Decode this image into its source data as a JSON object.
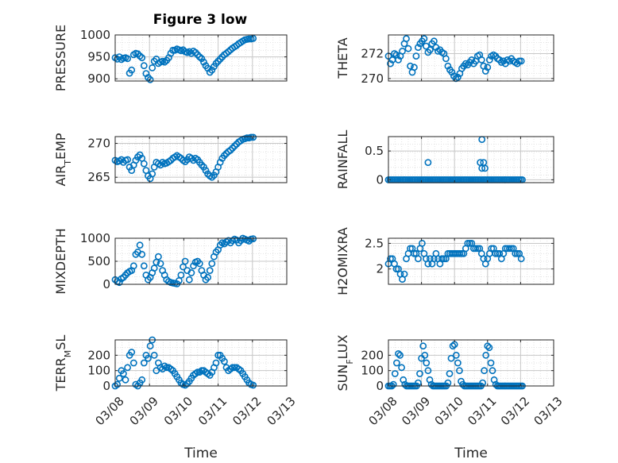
{
  "title": "Figure 3 low",
  "colors": {
    "marker": "#0072BD",
    "axis": "#262626",
    "grid": "#c8c8c8"
  },
  "chart_data": [
    {
      "type": "scatter",
      "ylabel": "PRESSURE",
      "ylim": [
        895,
        1000
      ],
      "yticks": [
        900,
        950,
        1000
      ],
      "ytick_labels": [
        "900",
        "950",
        "1000"
      ],
      "xlim": [
        0,
        5
      ],
      "grid": true,
      "marker": "circle",
      "x": [
        0.0,
        0.06,
        0.12,
        0.18,
        0.24,
        0.3,
        0.36,
        0.42,
        0.48,
        0.54,
        0.6,
        0.66,
        0.72,
        0.78,
        0.84,
        0.9,
        0.96,
        1.02,
        1.08,
        1.14,
        1.2,
        1.26,
        1.32,
        1.38,
        1.44,
        1.5,
        1.56,
        1.62,
        1.68,
        1.74,
        1.8,
        1.86,
        1.92,
        1.98,
        2.04,
        2.1,
        2.16,
        2.22,
        2.28,
        2.34,
        2.4,
        2.46,
        2.52,
        2.58,
        2.64,
        2.7,
        2.76,
        2.82,
        2.88,
        2.94,
        3.0,
        3.06,
        3.12,
        3.18,
        3.24,
        3.3,
        3.36,
        3.42,
        3.48,
        3.54,
        3.6,
        3.66,
        3.72,
        3.78,
        3.84,
        3.9,
        3.96,
        4.02
      ],
      "y": [
        948,
        945,
        950,
        944,
        947,
        948,
        946,
        913,
        920,
        955,
        958,
        957,
        952,
        948,
        930,
        912,
        903,
        898,
        925,
        940,
        945,
        935,
        938,
        940,
        938,
        942,
        948,
        958,
        965,
        965,
        968,
        966,
        964,
        966,
        962,
        960,
        962,
        958,
        963,
        960,
        955,
        950,
        946,
        938,
        930,
        924,
        915,
        920,
        928,
        935,
        940,
        945,
        950,
        955,
        958,
        962,
        966,
        970,
        973,
        976,
        980,
        983,
        986,
        989,
        990,
        991,
        991,
        992
      ]
    },
    {
      "type": "scatter",
      "ylabel": "THETA",
      "ylim": [
        269.8,
        273.5
      ],
      "yticks": [
        270,
        272
      ],
      "ytick_labels": [
        "270",
        "272"
      ],
      "xlim": [
        0,
        5
      ],
      "grid": true,
      "marker": "circle",
      "x": [
        0.0,
        0.06,
        0.12,
        0.18,
        0.24,
        0.3,
        0.36,
        0.42,
        0.48,
        0.54,
        0.6,
        0.66,
        0.72,
        0.78,
        0.84,
        0.9,
        0.96,
        1.02,
        1.08,
        1.14,
        1.2,
        1.26,
        1.32,
        1.38,
        1.44,
        1.5,
        1.56,
        1.62,
        1.68,
        1.74,
        1.8,
        1.86,
        1.92,
        1.98,
        2.04,
        2.1,
        2.16,
        2.22,
        2.28,
        2.34,
        2.4,
        2.46,
        2.52,
        2.58,
        2.64,
        2.7,
        2.76,
        2.82,
        2.88,
        2.94,
        3.0,
        3.06,
        3.12,
        3.18,
        3.24,
        3.3,
        3.36,
        3.42,
        3.48,
        3.54,
        3.6,
        3.66,
        3.72,
        3.78,
        3.84,
        3.9,
        3.96,
        4.02
      ],
      "y": [
        271.8,
        271.2,
        271.5,
        272.0,
        271.9,
        271.5,
        271.8,
        272.2,
        272.8,
        273.2,
        272.4,
        271.0,
        270.5,
        270.9,
        271.8,
        272.5,
        272.8,
        273.0,
        273.2,
        272.6,
        272.1,
        272.3,
        272.8,
        273.0,
        272.5,
        272.2,
        272.3,
        272.1,
        272.0,
        271.6,
        271.0,
        270.7,
        270.5,
        270.2,
        270.0,
        270.1,
        270.4,
        270.8,
        271.0,
        271.2,
        271.1,
        271.3,
        271.5,
        271.2,
        271.4,
        271.8,
        271.9,
        271.5,
        271.0,
        270.6,
        270.9,
        271.5,
        271.8,
        271.9,
        271.8,
        271.6,
        271.5,
        271.3,
        271.4,
        271.2,
        271.5,
        271.4,
        271.6,
        271.4,
        271.3,
        271.2,
        271.4,
        271.4
      ]
    },
    {
      "type": "scatter",
      "ylabel": "AIR_TEMP",
      "ylim": [
        264.2,
        271
      ],
      "yticks": [
        265,
        270
      ],
      "ytick_labels": [
        "265",
        "270"
      ],
      "xlim": [
        0,
        5
      ],
      "grid": true,
      "marker": "circle",
      "x": [
        0.0,
        0.06,
        0.12,
        0.18,
        0.24,
        0.3,
        0.36,
        0.42,
        0.48,
        0.54,
        0.6,
        0.66,
        0.72,
        0.78,
        0.84,
        0.9,
        0.96,
        1.02,
        1.08,
        1.14,
        1.2,
        1.26,
        1.32,
        1.38,
        1.44,
        1.5,
        1.56,
        1.62,
        1.68,
        1.74,
        1.8,
        1.86,
        1.92,
        1.98,
        2.04,
        2.1,
        2.16,
        2.22,
        2.28,
        2.34,
        2.4,
        2.46,
        2.52,
        2.58,
        2.64,
        2.7,
        2.76,
        2.82,
        2.88,
        2.94,
        3.0,
        3.06,
        3.12,
        3.18,
        3.24,
        3.3,
        3.36,
        3.42,
        3.48,
        3.54,
        3.6,
        3.66,
        3.72,
        3.78,
        3.84,
        3.9,
        3.96,
        4.02
      ],
      "y": [
        267.5,
        267.3,
        267.4,
        267.6,
        267.2,
        267.5,
        267.6,
        266.5,
        266.0,
        266.8,
        267.5,
        268.0,
        268.3,
        267.8,
        267.0,
        266.0,
        265.2,
        264.8,
        265.5,
        266.5,
        267.2,
        267.0,
        266.8,
        267.2,
        267.0,
        267.1,
        267.3,
        267.5,
        267.8,
        268.0,
        268.2,
        268.0,
        267.8,
        267.5,
        267.3,
        267.6,
        268.0,
        267.8,
        267.5,
        267.8,
        267.6,
        267.2,
        266.8,
        266.5,
        266.0,
        265.5,
        265.2,
        265.0,
        265.3,
        265.8,
        266.5,
        267.2,
        267.8,
        268.2,
        268.5,
        268.8,
        269.0,
        269.3,
        269.6,
        269.9,
        270.2,
        270.4,
        270.6,
        270.7,
        270.8,
        270.8,
        270.9,
        270.9
      ]
    },
    {
      "type": "scatter",
      "ylabel": "RAINFALL",
      "ylim": [
        -0.05,
        0.75
      ],
      "yticks": [
        0,
        0.5
      ],
      "ytick_labels": [
        "0",
        "0.5"
      ],
      "xlim": [
        0,
        5
      ],
      "grid": true,
      "marker": "circle",
      "x": [
        0.0,
        0.05,
        0.1,
        0.15,
        0.2,
        0.25,
        0.3,
        0.35,
        0.4,
        0.45,
        0.5,
        0.55,
        0.6,
        0.65,
        0.7,
        0.75,
        0.8,
        0.85,
        0.9,
        0.95,
        1.0,
        1.05,
        1.1,
        1.15,
        1.2,
        1.25,
        1.3,
        1.35,
        1.4,
        1.45,
        1.5,
        1.55,
        1.6,
        1.65,
        1.7,
        1.75,
        1.8,
        1.85,
        1.9,
        1.95,
        2.0,
        2.05,
        2.1,
        2.15,
        2.2,
        2.25,
        2.3,
        2.35,
        2.4,
        2.45,
        2.5,
        2.55,
        2.6,
        2.65,
        2.7,
        2.75,
        2.8,
        2.85,
        2.9,
        2.95,
        3.0,
        3.05,
        3.1,
        3.15,
        3.2,
        3.25,
        3.3,
        3.35,
        3.4,
        3.45,
        3.5,
        3.55,
        3.6,
        3.65,
        3.7,
        3.75,
        3.8,
        3.85,
        3.9,
        3.95,
        4.0,
        4.05,
        1.2,
        2.83,
        2.78,
        2.88,
        2.92,
        2.83
      ],
      "y": [
        0,
        0,
        0,
        0,
        0,
        0,
        0,
        0,
        0,
        0,
        0,
        0,
        0,
        0,
        0,
        0,
        0,
        0,
        0,
        0,
        0,
        0,
        0,
        0,
        0,
        0,
        0,
        0,
        0,
        0,
        0,
        0,
        0,
        0,
        0,
        0,
        0,
        0,
        0,
        0,
        0,
        0,
        0,
        0,
        0,
        0,
        0,
        0,
        0,
        0,
        0,
        0,
        0,
        0,
        0,
        0,
        0,
        0,
        0,
        0,
        0,
        0,
        0,
        0,
        0,
        0,
        0,
        0,
        0,
        0,
        0,
        0,
        0,
        0,
        0,
        0,
        0,
        0,
        0,
        0,
        0,
        0,
        0.3,
        0.7,
        0.3,
        0.3,
        0.2,
        0.2
      ]
    },
    {
      "type": "scatter",
      "ylabel": "MIXDEPTH",
      "ylim": [
        0,
        1000
      ],
      "yticks": [
        0,
        500,
        1000
      ],
      "ytick_labels": [
        "0",
        "500",
        "1000"
      ],
      "xlim": [
        0,
        5
      ],
      "grid": true,
      "marker": "circle",
      "x": [
        0.0,
        0.06,
        0.12,
        0.18,
        0.24,
        0.3,
        0.36,
        0.42,
        0.48,
        0.54,
        0.6,
        0.66,
        0.72,
        0.78,
        0.84,
        0.9,
        0.96,
        1.02,
        1.08,
        1.14,
        1.2,
        1.26,
        1.32,
        1.38,
        1.44,
        1.5,
        1.56,
        1.62,
        1.68,
        1.74,
        1.8,
        1.86,
        1.92,
        1.98,
        2.04,
        2.1,
        2.16,
        2.22,
        2.28,
        2.34,
        2.4,
        2.46,
        2.52,
        2.58,
        2.64,
        2.7,
        2.76,
        2.82,
        2.88,
        2.94,
        3.0,
        3.06,
        3.12,
        3.18,
        3.24,
        3.3,
        3.36,
        3.42,
        3.48,
        3.54,
        3.6,
        3.66,
        3.72,
        3.78,
        3.84,
        3.9,
        3.96,
        4.02
      ],
      "y": [
        100,
        60,
        40,
        120,
        150,
        200,
        250,
        280,
        300,
        400,
        650,
        700,
        850,
        650,
        400,
        200,
        100,
        150,
        250,
        350,
        480,
        600,
        450,
        300,
        200,
        100,
        60,
        40,
        30,
        20,
        10,
        80,
        200,
        380,
        500,
        300,
        100,
        250,
        400,
        480,
        500,
        450,
        300,
        200,
        100,
        150,
        300,
        450,
        600,
        700,
        750,
        850,
        900,
        880,
        920,
        950,
        900,
        950,
        980,
        960,
        900,
        950,
        1000,
        980,
        960,
        940,
        980,
        990
      ]
    },
    {
      "type": "scatter",
      "ylabel": "H2OMIXRA",
      "ylim": [
        1.7,
        2.6
      ],
      "yticks": [
        2,
        2.5
      ],
      "ytick_labels": [
        "2",
        "2.5"
      ],
      "xlim": [
        0,
        5
      ],
      "grid": true,
      "marker": "circle",
      "x": [
        0.0,
        0.06,
        0.12,
        0.18,
        0.24,
        0.3,
        0.36,
        0.42,
        0.48,
        0.54,
        0.6,
        0.66,
        0.72,
        0.78,
        0.84,
        0.9,
        0.96,
        1.02,
        1.08,
        1.14,
        1.2,
        1.26,
        1.32,
        1.38,
        1.44,
        1.5,
        1.56,
        1.62,
        1.68,
        1.74,
        1.8,
        1.86,
        1.92,
        1.98,
        2.04,
        2.1,
        2.16,
        2.22,
        2.28,
        2.34,
        2.4,
        2.46,
        2.52,
        2.58,
        2.64,
        2.7,
        2.76,
        2.82,
        2.88,
        2.94,
        3.0,
        3.06,
        3.12,
        3.18,
        3.24,
        3.3,
        3.36,
        3.42,
        3.48,
        3.54,
        3.6,
        3.66,
        3.72,
        3.78,
        3.84,
        3.9,
        3.96,
        4.02
      ],
      "y": [
        2.1,
        2.2,
        2.2,
        2.1,
        2.0,
        2.0,
        1.9,
        1.8,
        1.9,
        2.2,
        2.3,
        2.4,
        2.4,
        2.3,
        2.3,
        2.2,
        2.4,
        2.5,
        2.3,
        2.2,
        2.1,
        2.2,
        2.1,
        2.2,
        2.3,
        2.2,
        2.1,
        2.2,
        2.2,
        2.2,
        2.3,
        2.3,
        2.3,
        2.3,
        2.3,
        2.3,
        2.3,
        2.3,
        2.3,
        2.4,
        2.5,
        2.5,
        2.5,
        2.4,
        2.4,
        2.4,
        2.4,
        2.3,
        2.2,
        2.1,
        2.2,
        2.3,
        2.4,
        2.4,
        2.3,
        2.3,
        2.3,
        2.2,
        2.3,
        2.4,
        2.4,
        2.4,
        2.4,
        2.4,
        2.3,
        2.3,
        2.3,
        2.2
      ]
    },
    {
      "type": "scatter",
      "ylabel": "TERR_MSL",
      "ylim": [
        0,
        300
      ],
      "yticks": [
        0,
        100,
        200
      ],
      "ytick_labels": [
        "0",
        "100",
        "200"
      ],
      "xlim": [
        0,
        5
      ],
      "grid": true,
      "marker": "circle",
      "x": [
        0.0,
        0.06,
        0.12,
        0.18,
        0.24,
        0.3,
        0.36,
        0.42,
        0.48,
        0.54,
        0.6,
        0.66,
        0.72,
        0.78,
        0.84,
        0.9,
        0.96,
        1.02,
        1.08,
        1.14,
        1.2,
        1.26,
        1.32,
        1.38,
        1.44,
        1.5,
        1.56,
        1.62,
        1.68,
        1.74,
        1.8,
        1.86,
        1.92,
        1.98,
        2.04,
        2.1,
        2.16,
        2.22,
        2.28,
        2.34,
        2.4,
        2.46,
        2.52,
        2.58,
        2.64,
        2.7,
        2.76,
        2.82,
        2.88,
        2.94,
        3.0,
        3.06,
        3.12,
        3.18,
        3.24,
        3.3,
        3.36,
        3.42,
        3.48,
        3.54,
        3.6,
        3.66,
        3.72,
        3.78,
        3.84,
        3.9,
        3.96,
        4.02
      ],
      "y": [
        0,
        10,
        50,
        100,
        80,
        40,
        120,
        200,
        220,
        150,
        10,
        0,
        20,
        40,
        150,
        200,
        180,
        260,
        300,
        200,
        100,
        150,
        120,
        110,
        130,
        120,
        120,
        110,
        100,
        80,
        60,
        40,
        20,
        10,
        5,
        15,
        30,
        50,
        70,
        80,
        90,
        90,
        100,
        100,
        90,
        80,
        70,
        90,
        120,
        150,
        200,
        200,
        180,
        160,
        120,
        100,
        110,
        120,
        120,
        120,
        110,
        100,
        80,
        60,
        40,
        20,
        10,
        5
      ]
    },
    {
      "type": "scatter",
      "ylabel": "SUN_FLUX",
      "ylim": [
        0,
        300
      ],
      "yticks": [
        0,
        100,
        200
      ],
      "ytick_labels": [
        "0",
        "100",
        "200"
      ],
      "xlim": [
        0,
        5
      ],
      "grid": true,
      "marker": "circle",
      "x": [
        0.0,
        0.05,
        0.1,
        0.15,
        0.2,
        0.25,
        0.3,
        0.35,
        0.4,
        0.45,
        0.5,
        0.55,
        0.6,
        0.65,
        0.7,
        0.75,
        0.8,
        0.85,
        0.9,
        0.95,
        1.0,
        1.05,
        1.1,
        1.15,
        1.2,
        1.25,
        1.3,
        1.35,
        1.4,
        1.45,
        1.5,
        1.55,
        1.6,
        1.65,
        1.7,
        1.75,
        1.8,
        1.85,
        1.9,
        1.95,
        2.0,
        2.05,
        2.1,
        2.15,
        2.2,
        2.25,
        2.3,
        2.35,
        2.4,
        2.45,
        2.5,
        2.55,
        2.6,
        2.65,
        2.7,
        2.75,
        2.8,
        2.85,
        2.9,
        2.95,
        3.0,
        3.05,
        3.1,
        3.15,
        3.2,
        3.25,
        3.3,
        3.35,
        3.4,
        3.45,
        3.5,
        3.55,
        3.6,
        3.65,
        3.7,
        3.75,
        3.8,
        3.85,
        3.9,
        3.95,
        4.0,
        4.05
      ],
      "y": [
        0,
        0,
        0,
        10,
        80,
        150,
        210,
        200,
        120,
        40,
        10,
        0,
        0,
        0,
        0,
        0,
        0,
        0,
        20,
        80,
        180,
        260,
        200,
        150,
        100,
        40,
        10,
        0,
        0,
        0,
        0,
        0,
        0,
        0,
        0,
        0,
        20,
        80,
        180,
        260,
        270,
        200,
        150,
        100,
        30,
        10,
        0,
        0,
        0,
        0,
        0,
        0,
        0,
        0,
        0,
        0,
        0,
        20,
        100,
        200,
        260,
        250,
        150,
        100,
        40,
        10,
        0,
        0,
        0,
        0,
        0,
        0,
        0,
        0,
        0,
        0,
        0,
        0,
        0,
        0,
        0,
        0
      ]
    }
  ],
  "x_axis": {
    "tick_labels": [
      "03/08",
      "03/09",
      "03/10",
      "03/11",
      "03/12",
      "03/13"
    ],
    "xlabel": "Time"
  }
}
